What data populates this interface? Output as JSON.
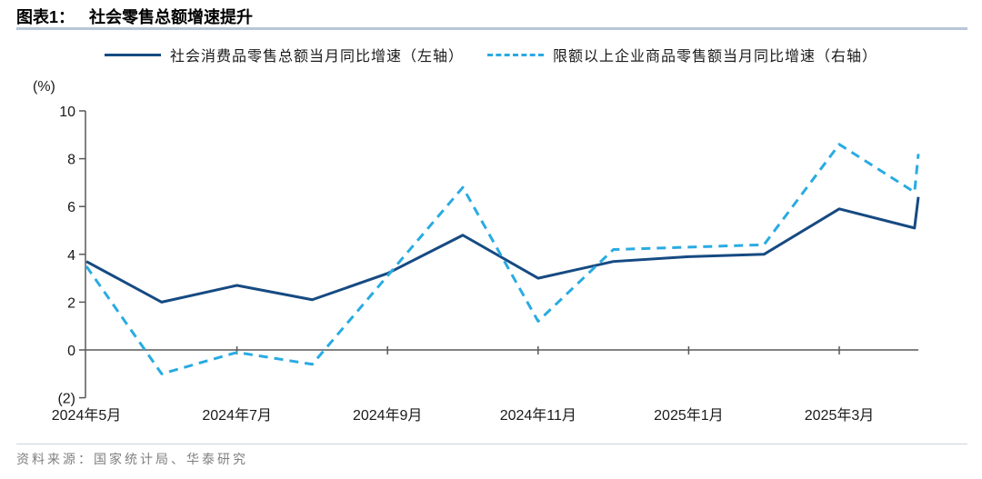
{
  "header": {
    "title_prefix": "图表1：",
    "title": "社会零售总额增速提升"
  },
  "legend": [
    {
      "label": "社会消费品零售总额当月同比增速（左轴）",
      "style": "solid",
      "color": "#164a82"
    },
    {
      "label": "限额以上企业商品零售额当月同比增速（右轴）",
      "style": "dashed",
      "color": "#29abe2"
    }
  ],
  "chart_data": {
    "type": "line",
    "title": "社会零售总额增速提升",
    "unit_label": "(%)",
    "x": [
      "2024年5月",
      "2024年6月",
      "2024年7月",
      "2024年8月",
      "2024年9月",
      "2024年10月",
      "2024年11月",
      "2024年12月",
      "2025年1月",
      "2025年2月",
      "2025年3月",
      "2025年4月",
      "2025年5月"
    ],
    "x_tick_labels": [
      "2024年5月",
      "2024年7月",
      "2024年9月",
      "2024年11月",
      "2025年1月",
      "2025年3月"
    ],
    "x_tick_indices": [
      0,
      2,
      4,
      6,
      8,
      10
    ],
    "series": [
      {
        "name": "社会消费品零售总额当月同比增速（左轴）",
        "axis": "left",
        "line": "solid",
        "color": "#164a82",
        "values": [
          3.7,
          2.0,
          2.7,
          2.1,
          3.2,
          4.8,
          3.0,
          3.7,
          3.9,
          4.0,
          5.9,
          5.1,
          6.4
        ]
      },
      {
        "name": "限额以上企业商品零售额当月同比增速（右轴）",
        "axis": "right",
        "line": "dashed",
        "color": "#29abe2",
        "values": [
          3.5,
          -1.0,
          -0.1,
          -0.6,
          3.1,
          6.8,
          1.2,
          4.2,
          4.3,
          4.4,
          8.6,
          6.6,
          8.2
        ]
      }
    ],
    "ylim": [
      -2,
      10
    ],
    "yticks": [
      10,
      8,
      6,
      4,
      2,
      0,
      -2
    ],
    "ytick_labels": [
      "10",
      "8",
      "6",
      "4",
      "2",
      "0",
      "(2)"
    ],
    "axis_color": "#595959",
    "tick_label_color": "#1a1a1a",
    "grid": false,
    "legend_position": "top"
  },
  "source": {
    "text": "资料来源：国家统计局、华泰研究"
  }
}
